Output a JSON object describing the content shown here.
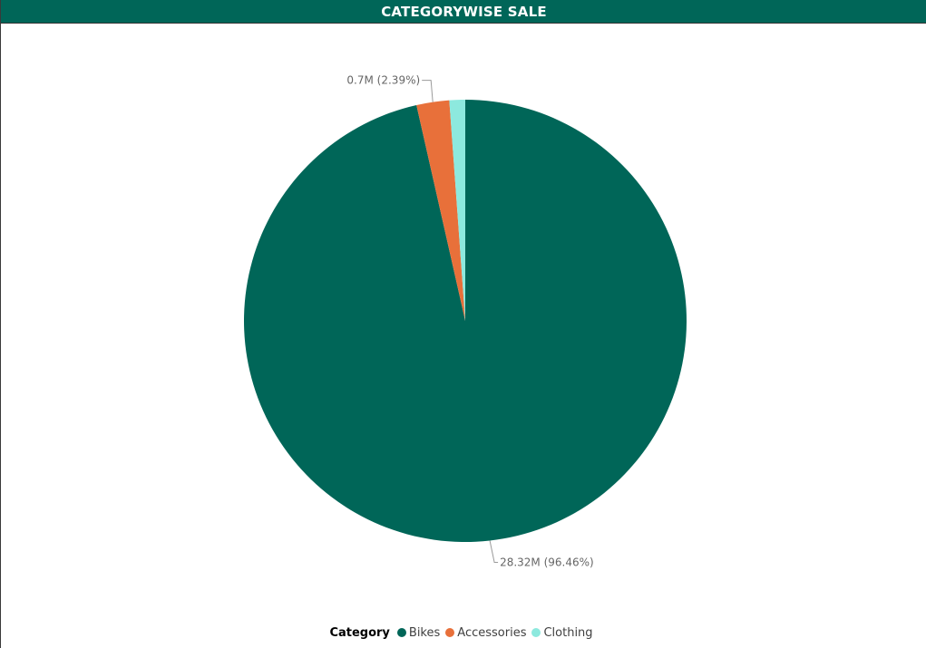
{
  "chart_data": {
    "type": "pie",
    "title": "CATEGORYWISE SALE",
    "legend_title": "Category",
    "legend_position": "bottom-center",
    "slices": [
      {
        "name": "Bikes",
        "value": 96.46,
        "label": "28.32M (96.46%)",
        "color": "#006658"
      },
      {
        "name": "Accessories",
        "value": 2.39,
        "label": "0.7M (2.39%)",
        "color": "#E8703A"
      },
      {
        "name": "Clothing",
        "value": 1.15,
        "label": "",
        "color": "#8DE9DE"
      }
    ]
  }
}
